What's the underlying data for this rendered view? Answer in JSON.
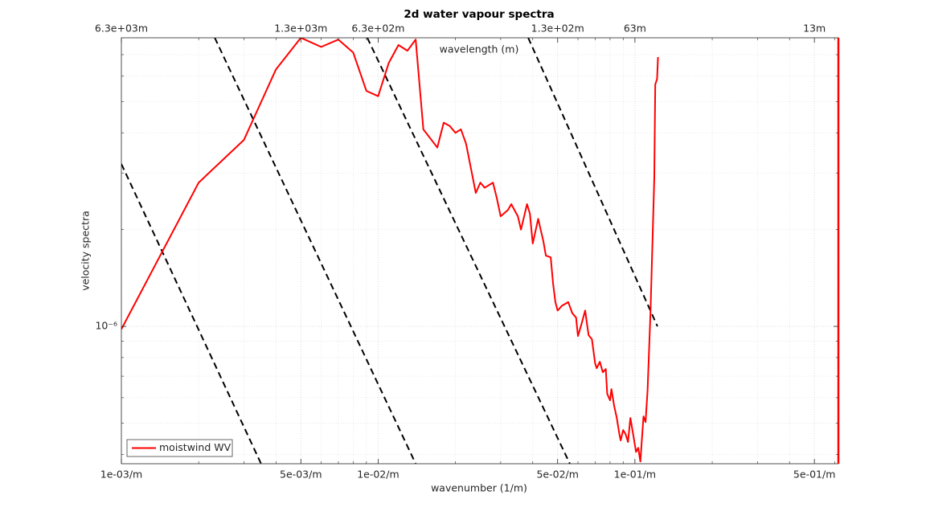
{
  "chart_data": {
    "type": "line",
    "title": "2d water vapour spectra",
    "x_label": "wavenumber (1/m)",
    "x2_label": "wavelength (m)",
    "y_label": "velocity spectra",
    "log_x": true,
    "log_y": true,
    "grid": true,
    "minor_grid": true,
    "legend": "southwest",
    "xlim": [
      0.001,
      0.62
    ],
    "ylim": [
      3.74e-07,
      7.9e-06
    ],
    "xticks": [
      {
        "value": 0.001,
        "label": "1e-03/m"
      },
      {
        "value": 0.005,
        "label": "5e-03/m"
      },
      {
        "value": 0.01,
        "label": "1e-02/m"
      },
      {
        "value": 0.05,
        "label": "5e-02/m"
      },
      {
        "value": 0.1,
        "label": "1e-01/m"
      },
      {
        "value": 0.5,
        "label": "5e-01/m"
      }
    ],
    "x2ticks": [
      {
        "value": 0.001,
        "label": "6.3e+03m"
      },
      {
        "value": 0.005,
        "label": "1.3e+03m"
      },
      {
        "value": 0.01,
        "label": "6.3e+02m"
      },
      {
        "value": 0.05,
        "label": "1.3e+02m"
      },
      {
        "value": 0.1,
        "label": "63m"
      },
      {
        "value": 0.5,
        "label": "13m"
      }
    ],
    "yticks": [
      {
        "value": 1e-06,
        "label": "10⁻⁶"
      }
    ],
    "xminorticks": [
      0.002,
      0.003,
      0.004,
      0.006,
      0.007,
      0.008,
      0.009,
      0.02,
      0.03,
      0.04,
      0.06,
      0.07,
      0.08,
      0.09,
      0.2,
      0.3,
      0.4,
      0.6
    ],
    "yminorticks": [
      4e-07,
      5e-07,
      6e-07,
      7e-07,
      8e-07,
      9e-07,
      2e-06,
      3e-06,
      4e-06,
      5e-06,
      6e-06,
      7e-06
    ],
    "series": [
      {
        "name": "moistwind WV",
        "color": "#ff0000",
        "x": [
          0.001,
          0.002,
          0.003,
          0.004,
          0.005,
          0.006,
          0.007,
          0.008,
          0.009,
          0.01,
          0.011,
          0.012,
          0.013,
          0.014,
          0.015,
          0.017,
          0.018,
          0.019,
          0.02,
          0.021,
          0.022,
          0.024,
          0.025,
          0.026,
          0.028,
          0.029,
          0.03,
          0.032,
          0.033,
          0.035,
          0.036,
          0.038,
          0.039,
          0.04,
          0.042,
          0.044,
          0.045,
          0.047,
          0.048,
          0.049,
          0.05,
          0.052,
          0.055,
          0.057,
          0.059,
          0.06,
          0.062,
          0.064,
          0.066,
          0.068,
          0.07,
          0.071,
          0.073,
          0.075,
          0.077,
          0.078,
          0.08,
          0.081,
          0.083,
          0.085,
          0.087,
          0.088,
          0.09,
          0.092,
          0.094,
          0.096,
          0.099,
          0.101,
          0.103,
          0.105,
          0.108,
          0.11,
          0.112,
          0.115,
          0.119,
          0.12,
          0.122,
          0.123
        ],
        "values": [
          9.8e-07,
          2.8e-06,
          3.8e-06,
          6.3e-06,
          7.9e-06,
          7.4e-06,
          7.8e-06,
          7.1e-06,
          5.4e-06,
          5.2e-06,
          6.6e-06,
          7.5e-06,
          7.2e-06,
          7.8e-06,
          4.1e-06,
          3.6e-06,
          4.3e-06,
          4.2e-06,
          4e-06,
          4.1e-06,
          3.7e-06,
          2.6e-06,
          2.8e-06,
          2.7e-06,
          2.8e-06,
          2.5e-06,
          2.2e-06,
          2.3e-06,
          2.4e-06,
          2.2e-06,
          2e-06,
          2.4e-06,
          2.24e-06,
          1.81e-06,
          2.16e-06,
          1.84e-06,
          1.66e-06,
          1.64e-06,
          1.36e-06,
          1.19e-06,
          1.12e-06,
          1.16e-06,
          1.19e-06,
          1.1e-06,
          1.065e-06,
          9.33e-07,
          1.02e-06,
          1.12e-06,
          9.39e-07,
          9.12e-07,
          7.67e-07,
          7.41e-07,
          7.76e-07,
          7.2e-07,
          7.37e-07,
          6.17e-07,
          5.89e-07,
          6.38e-07,
          5.66e-07,
          5.19e-07,
          4.62e-07,
          4.42e-07,
          4.76e-07,
          4.62e-07,
          4.37e-07,
          5.19e-07,
          4.49e-07,
          4.07e-07,
          4.19e-07,
          3.8e-07,
          5.25e-07,
          5.04e-07,
          6.31e-07,
          1.11e-06,
          2.92e-06,
          5.65e-06,
          5.89e-06,
          6.88e-06
        ]
      }
    ],
    "reference_lines": {
      "color": "#000000",
      "line_style": "dashed",
      "lines": [
        {
          "x": [
            0.001,
            0.0035
          ],
          "values": [
            3.2e-06,
            3.74e-07
          ]
        },
        {
          "x": [
            0.00231,
            0.014
          ],
          "values": [
            7.9e-06,
            3.74e-07
          ]
        },
        {
          "x": [
            0.00907,
            0.0558
          ],
          "values": [
            7.9e-06,
            3.74e-07
          ]
        },
        {
          "x": [
            0.0384,
            0.1224
          ],
          "values": [
            7.9e-06,
            1e-06
          ]
        }
      ]
    }
  }
}
